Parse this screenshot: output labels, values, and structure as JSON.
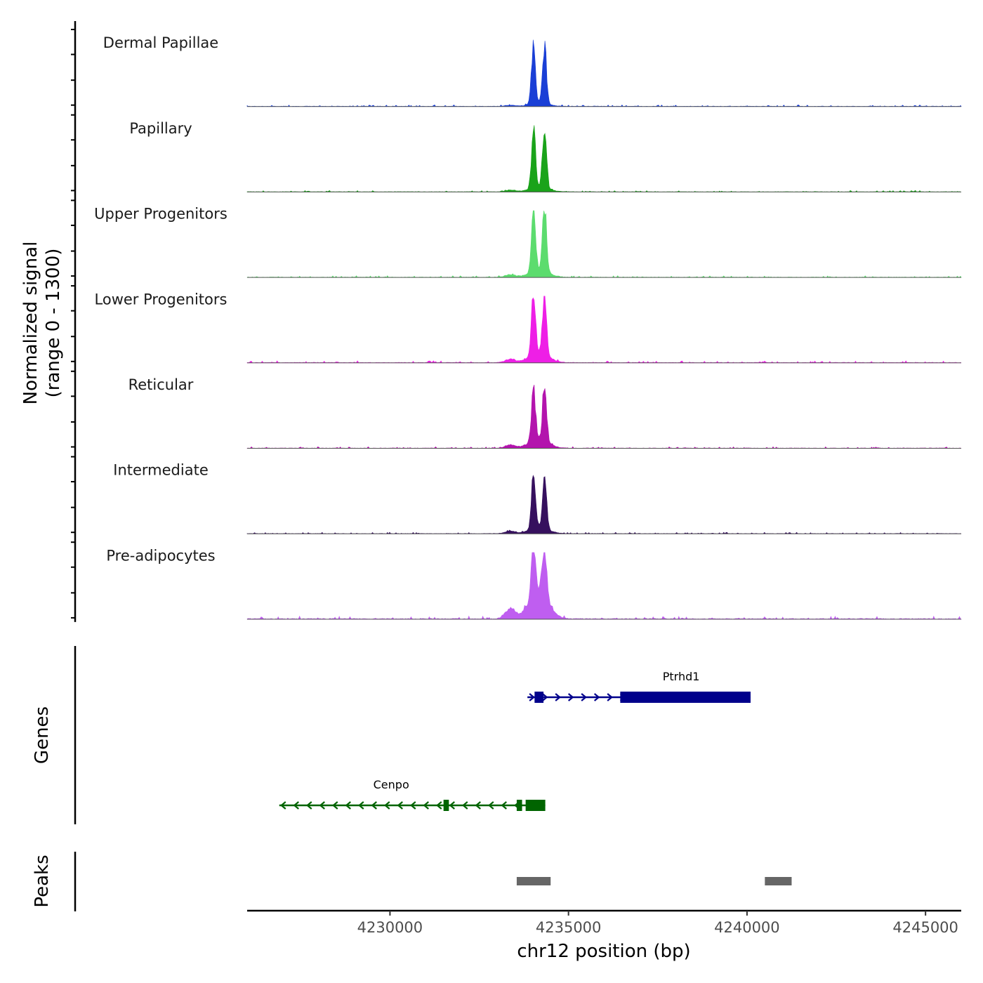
{
  "chart_data": {
    "type": "area",
    "title": "",
    "chromosome": "chr12",
    "xlabel": "chr12 position (bp)",
    "ylabel": "Normalized signal",
    "ylabel_range": "(range 0 - 1300)",
    "xlim": [
      4226000,
      4246000
    ],
    "ylim": [
      0,
      1300
    ],
    "x_ticks": [
      4230000,
      4235000,
      4240000,
      4245000
    ],
    "x_tick_labels": [
      "4230000",
      "4235000",
      "4240000",
      "4245000"
    ],
    "peak_centers": [
      4234020,
      4234330
    ],
    "tracks": [
      {
        "name": "Dermal Papillae",
        "color": "#1a3fd6",
        "peak_values": [
          1180,
          1150
        ],
        "shoulder_value": 60,
        "noise_level": 20
      },
      {
        "name": "Papillary",
        "color": "#1aa31a",
        "peak_values": [
          1170,
          1200
        ],
        "shoulder_value": 100,
        "noise_level": 18
      },
      {
        "name": "Upper Progenitors",
        "color": "#5cdc6e",
        "peak_values": [
          1320,
          1300
        ],
        "shoulder_value": 150,
        "noise_level": 22
      },
      {
        "name": "Lower Progenitors",
        "color": "#ee1fe6",
        "peak_values": [
          1250,
          1220
        ],
        "shoulder_value": 200,
        "noise_level": 25
      },
      {
        "name": "Reticular",
        "color": "#b314ad",
        "peak_values": [
          1060,
          1110
        ],
        "shoulder_value": 190,
        "noise_level": 20
      },
      {
        "name": "Intermediate",
        "color": "#36105e",
        "peak_values": [
          1080,
          1040
        ],
        "shoulder_value": 130,
        "noise_level": 18
      },
      {
        "name": "Pre-adipocytes",
        "color": "#bf5ef0",
        "peak_values": [
          1200,
          1070
        ],
        "shoulder_value": 600,
        "noise_level": 40
      }
    ],
    "genes_panel_label": "Genes",
    "genes": [
      {
        "name": "Ptrhd1",
        "strand": "+",
        "start": 4233850,
        "end": 4240100,
        "color": "#00008b",
        "exons": [
          [
            4234050,
            4234300
          ],
          [
            4236450,
            4240100
          ]
        ]
      },
      {
        "name": "Cenpo",
        "strand": "-",
        "start": 4226900,
        "end": 4234350,
        "color": "#006400",
        "exons": [
          [
            4231500,
            4231650
          ],
          [
            4233550,
            4233700
          ],
          [
            4233800,
            4234350
          ]
        ]
      }
    ],
    "peaks_panel_label": "Peaks",
    "peaks": [
      [
        4233550,
        4234500
      ],
      [
        4240500,
        4241250
      ]
    ],
    "peak_color": "#666666"
  }
}
